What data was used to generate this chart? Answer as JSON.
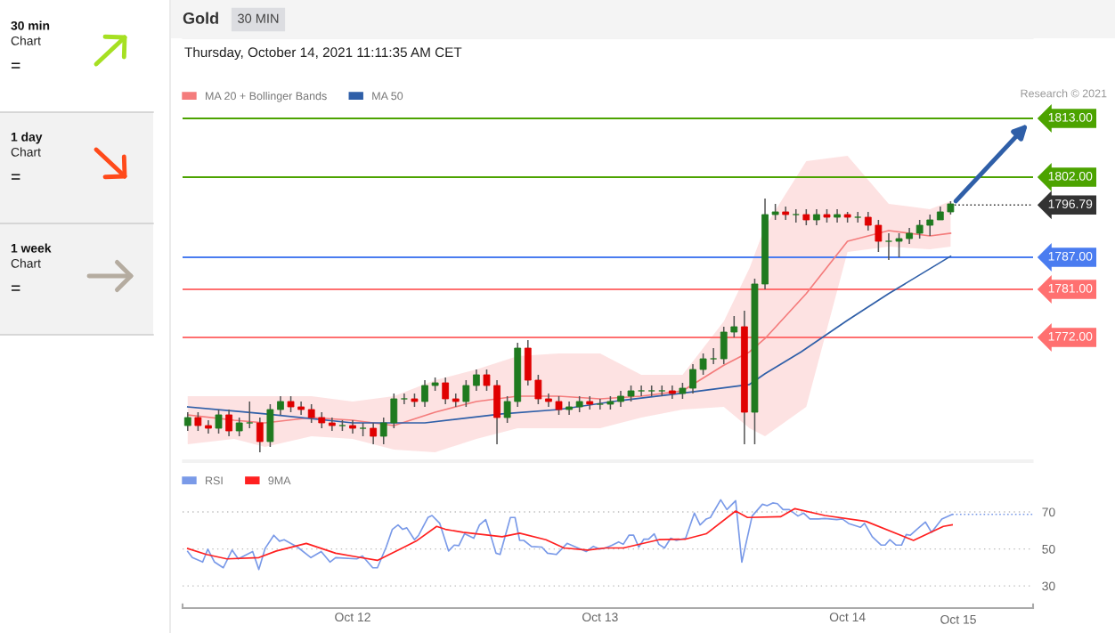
{
  "chart_data": [
    {
      "type": "other",
      "annotations": [
        "30 min",
        "Chart",
        "=",
        "1 day",
        "Chart",
        "=",
        "1 week",
        "Chart",
        "="
      ]
    },
    {
      "type": "candlestick",
      "title": "Gold",
      "subtitle": "Thursday, October 14, 2021 11:11:35 AM CET",
      "annotations": [
        "30 MIN",
        "Research © 2021"
      ],
      "x": [
        "2021-10-11T08:00",
        "2021-10-11T09:00",
        "2021-10-11T10:00",
        "2021-10-11T11:00",
        "2021-10-11T12:00",
        "2021-10-11T13:00",
        "2021-10-11T14:00",
        "2021-10-11T15:00",
        "2021-10-11T16:00",
        "2021-10-11T17:00",
        "2021-10-11T18:00",
        "2021-10-11T19:00",
        "2021-10-11T20:00",
        "2021-10-11T21:00",
        "2021-10-11T22:00",
        "2021-10-11T23:00",
        "2021-10-12T00:00",
        "2021-10-12T01:00",
        "2021-10-12T02:00",
        "2021-10-12T03:00",
        "2021-10-12T04:00",
        "2021-10-12T05:00",
        "2021-10-12T06:00",
        "2021-10-12T07:00",
        "2021-10-12T08:00",
        "2021-10-12T09:00",
        "2021-10-12T10:00",
        "2021-10-12T11:00",
        "2021-10-12T12:00",
        "2021-10-12T13:00",
        "2021-10-12T14:00",
        "2021-10-12T15:00",
        "2021-10-12T16:00",
        "2021-10-12T17:00",
        "2021-10-12T18:00",
        "2021-10-12T19:00",
        "2021-10-12T20:00",
        "2021-10-12T21:00",
        "2021-10-12T22:00",
        "2021-10-12T23:00",
        "2021-10-13T00:00",
        "2021-10-13T01:00",
        "2021-10-13T02:00",
        "2021-10-13T03:00",
        "2021-10-13T04:00",
        "2021-10-13T05:00",
        "2021-10-13T06:00",
        "2021-10-13T07:00",
        "2021-10-13T08:00",
        "2021-10-13T09:00",
        "2021-10-13T10:00",
        "2021-10-13T11:00",
        "2021-10-13T12:00",
        "2021-10-13T13:00",
        "2021-10-13T14:00",
        "2021-10-13T15:00",
        "2021-10-13T16:00",
        "2021-10-13T17:00",
        "2021-10-13T18:00",
        "2021-10-13T19:00",
        "2021-10-13T20:00",
        "2021-10-13T21:00",
        "2021-10-13T22:00",
        "2021-10-13T23:00",
        "2021-10-14T00:00",
        "2021-10-14T01:00",
        "2021-10-14T02:00",
        "2021-10-14T03:00",
        "2021-10-14T04:00",
        "2021-10-14T05:00",
        "2021-10-14T06:00",
        "2021-10-14T07:00",
        "2021-10-14T08:00",
        "2021-10-14T09:00",
        "2021-10-14T10:00"
      ],
      "ohlc": [
        [
          1755.5,
          1758,
          1754.5,
          1757
        ],
        [
          1757,
          1758,
          1754.5,
          1755.5
        ],
        [
          1755.5,
          1756.5,
          1754,
          1755
        ],
        [
          1755,
          1758.5,
          1754,
          1757.5
        ],
        [
          1757.5,
          1758.5,
          1753.5,
          1754.5
        ],
        [
          1754.5,
          1757,
          1753.5,
          1756
        ],
        [
          1756,
          1760,
          1755,
          1756
        ],
        [
          1756,
          1757,
          1750.5,
          1752.5
        ],
        [
          1752.5,
          1759.5,
          1751.5,
          1758.5
        ],
        [
          1758.5,
          1761,
          1757.5,
          1760
        ],
        [
          1760,
          1761,
          1758,
          1759
        ],
        [
          1759,
          1760,
          1757.5,
          1758.5
        ],
        [
          1758.5,
          1759.5,
          1756,
          1757
        ],
        [
          1757,
          1758,
          1755,
          1756
        ],
        [
          1756,
          1757,
          1754.5,
          1755.5
        ],
        [
          1755.5,
          1756.5,
          1754.5,
          1755.5
        ],
        [
          1755.5,
          1756.5,
          1754,
          1755
        ],
        [
          1755,
          1756,
          1753.5,
          1755
        ],
        [
          1755,
          1756,
          1752,
          1753.5
        ],
        [
          1753.5,
          1757,
          1752,
          1756
        ],
        [
          1756,
          1761.5,
          1755,
          1760.5
        ],
        [
          1760.5,
          1761.5,
          1759.5,
          1760.5
        ],
        [
          1760.5,
          1761.5,
          1759,
          1760
        ],
        [
          1760,
          1764,
          1759,
          1763
        ],
        [
          1763,
          1764.5,
          1762,
          1763.5
        ],
        [
          1763.5,
          1764.5,
          1759.5,
          1760.5
        ],
        [
          1760.5,
          1761.5,
          1759,
          1760
        ],
        [
          1760,
          1764,
          1759,
          1763
        ],
        [
          1763,
          1766,
          1762,
          1765
        ],
        [
          1765,
          1766,
          1762,
          1763
        ],
        [
          1763,
          1764,
          1752,
          1757
        ],
        [
          1757,
          1761,
          1756,
          1760
        ],
        [
          1760,
          1771,
          1759,
          1770
        ],
        [
          1770,
          1771.5,
          1763,
          1764
        ],
        [
          1764,
          1765,
          1759.5,
          1760.5
        ],
        [
          1760.5,
          1761.5,
          1759,
          1760
        ],
        [
          1760,
          1761,
          1757.5,
          1758.5
        ],
        [
          1758.5,
          1760,
          1757.5,
          1759
        ],
        [
          1759,
          1761,
          1758,
          1760
        ],
        [
          1760,
          1761,
          1758.5,
          1759.5
        ],
        [
          1759.5,
          1760.5,
          1758.5,
          1759.5
        ],
        [
          1759.5,
          1761,
          1758.5,
          1760
        ],
        [
          1760,
          1762,
          1759,
          1761
        ],
        [
          1761,
          1763,
          1760,
          1762
        ],
        [
          1762,
          1763,
          1761,
          1762
        ],
        [
          1762,
          1763,
          1761,
          1762
        ],
        [
          1762,
          1763,
          1761,
          1762
        ],
        [
          1762,
          1763,
          1760.5,
          1761.5
        ],
        [
          1761.5,
          1763.5,
          1760.5,
          1762.5
        ],
        [
          1762.5,
          1767,
          1761.5,
          1766
        ],
        [
          1766,
          1769,
          1765,
          1768
        ],
        [
          1768,
          1770,
          1767,
          1768
        ],
        [
          1768,
          1774,
          1767,
          1773
        ],
        [
          1773,
          1776,
          1772,
          1774
        ],
        [
          1774,
          1777,
          1752,
          1758
        ],
        [
          1758,
          1783,
          1752,
          1782
        ],
        [
          1782,
          1798,
          1781,
          1795
        ],
        [
          1795,
          1797,
          1794,
          1795.5
        ],
        [
          1795.5,
          1796.5,
          1794,
          1795
        ],
        [
          1795,
          1796,
          1793.5,
          1795
        ],
        [
          1795,
          1796,
          1793,
          1794
        ],
        [
          1794,
          1796,
          1793,
          1795
        ],
        [
          1795,
          1796,
          1793.5,
          1794.5
        ],
        [
          1794.5,
          1796,
          1793.5,
          1795
        ],
        [
          1795,
          1795.5,
          1793.5,
          1794.5
        ],
        [
          1794.5,
          1795.5,
          1793.5,
          1794.5
        ],
        [
          1794.5,
          1795.5,
          1792,
          1793
        ],
        [
          1793,
          1794,
          1788,
          1790
        ],
        [
          1790,
          1791.5,
          1786.5,
          1790
        ],
        [
          1790,
          1791.5,
          1787,
          1790.5
        ],
        [
          1790.5,
          1792.5,
          1789.5,
          1791.5
        ],
        [
          1791.5,
          1794,
          1790.5,
          1793
        ],
        [
          1793,
          1795,
          1791,
          1794
        ],
        [
          1794,
          1796.5,
          1794,
          1795.5
        ],
        [
          1795.5,
          1797.5,
          1795,
          1797
        ]
      ],
      "series": [
        {
          "name": "MA 20 + Bollinger Bands",
          "type": "line",
          "color": "#f47c7c",
          "x": [
            "2021-10-11T08:00",
            "2021-10-11T12:30",
            "2021-10-11T15:30",
            "2021-10-11T20:00",
            "2021-10-12T00:00",
            "2021-10-12T04:00",
            "2021-10-12T08:00",
            "2021-10-12T12:00",
            "2021-10-12T16:00",
            "2021-10-12T20:00",
            "2021-10-13T00:00",
            "2021-10-13T04:00",
            "2021-10-13T08:00",
            "2021-10-13T12:00",
            "2021-10-13T14:30",
            "2021-10-13T16:00",
            "2021-10-13T20:00",
            "2021-10-14T00:00",
            "2021-10-14T04:00",
            "2021-10-14T08:00",
            "2021-10-14T10:00"
          ],
          "values": [
            1757.5,
            1756.5,
            1756,
            1757,
            1756.5,
            1755.5,
            1758,
            1760,
            1761,
            1761,
            1760.5,
            1761,
            1762,
            1766.8,
            1769.3,
            1771.8,
            1780.2,
            1790,
            1792,
            1791,
            1791.5
          ],
          "upper": [
            1761,
            1761,
            1761,
            1761,
            1760,
            1761,
            1764,
            1766,
            1768.5,
            1769,
            1769,
            1765,
            1765,
            1775,
            1785,
            1792.7,
            1805,
            1806,
            1797,
            1796,
            1797.5
          ],
          "lower": [
            1752,
            1753,
            1751.5,
            1753.5,
            1753,
            1751,
            1750.5,
            1753,
            1755,
            1755,
            1755,
            1757,
            1758.5,
            1759,
            1755,
            1753.5,
            1759,
            1788,
            1789,
            1788.5,
            1789
          ]
        },
        {
          "name": "MA 50",
          "type": "line",
          "color": "#2f5fa8",
          "x": [
            "2021-10-11T08:00",
            "2021-10-11T15:30",
            "2021-10-12T00:00",
            "2021-10-12T07:00",
            "2021-10-12T14:30",
            "2021-10-12T20:00",
            "2021-10-13T02:00",
            "2021-10-13T09:00",
            "2021-10-13T14:30",
            "2021-10-13T16:00",
            "2021-10-13T19:30",
            "2021-10-14T00:00",
            "2021-10-14T04:00",
            "2021-10-14T10:00"
          ],
          "values": [
            1759,
            1757.7,
            1756,
            1756,
            1757.7,
            1758.5,
            1760.2,
            1761.8,
            1763.2,
            1765.2,
            1769.3,
            1775.2,
            1780.2,
            1787.2
          ]
        }
      ],
      "xlim": [
        "2021-10-11T07:30",
        "2021-10-14T18:00"
      ],
      "ylim": [
        1749,
        1828
      ],
      "grid": false,
      "legend": "top left",
      "ref_lines": [
        {
          "axis": "y",
          "value": 1813,
          "label": "1813.00",
          "color": "#4ca300"
        },
        {
          "axis": "y",
          "value": 1802,
          "label": "1802.00",
          "color": "#4ca300"
        },
        {
          "axis": "y",
          "value": 1796.79,
          "label": "1796.79",
          "color": "#333333",
          "line_style": "dotted"
        },
        {
          "axis": "y",
          "value": 1787,
          "label": "1787.00",
          "color": "#4a7cf0"
        },
        {
          "axis": "y",
          "value": 1781,
          "label": "1781.00",
          "color": "#ff7070"
        },
        {
          "axis": "y",
          "value": 1772,
          "label": "1772.00",
          "color": "#ff7070"
        }
      ]
    },
    {
      "type": "line",
      "legend": "top left",
      "grid": "y",
      "xlim": [
        "2021-10-11T07:30",
        "2021-10-14T18:00"
      ],
      "ylim": [
        18,
        97
      ],
      "yticks": [
        30,
        50,
        70
      ],
      "xticks": [
        {
          "value": "2021-10-12",
          "label": "Oct 12"
        },
        {
          "value": "2021-10-13",
          "label": "Oct 13"
        },
        {
          "value": "2021-10-14",
          "label": "Oct 14"
        }
      ],
      "annotations": [
        "Oct 15"
      ],
      "series": [
        {
          "name": "RSI",
          "color": "#7a9ae8",
          "x": [
            "2021-10-11T08:00",
            "2021-10-11T08:27",
            "2021-10-11T09:27",
            "2021-10-11T09:57",
            "2021-10-11T10:36",
            "2021-10-11T11:27",
            "2021-10-11T12:18",
            "2021-10-11T12:54",
            "2021-10-11T14:18",
            "2021-10-11T14:54",
            "2021-10-11T15:30",
            "2021-10-11T16:21",
            "2021-10-11T16:54",
            "2021-10-11T17:21",
            "2021-10-11T18:39",
            "2021-10-11T19:57",
            "2021-10-11T20:57",
            "2021-10-11T21:48",
            "2021-10-11T22:21",
            "2021-10-12T00:24",
            "2021-10-12T00:57",
            "2021-10-12T01:57",
            "2021-10-12T02:24",
            "2021-10-12T03:15",
            "2021-10-12T03:51",
            "2021-10-12T04:24",
            "2021-10-12T04:51",
            "2021-10-12T05:15",
            "2021-10-12T06:00",
            "2021-10-12T06:24",
            "2021-10-12T07:18",
            "2021-10-12T07:42",
            "2021-10-12T08:27",
            "2021-10-12T09:18",
            "2021-10-12T09:51",
            "2021-10-12T10:18",
            "2021-10-12T10:51",
            "2021-10-12T11:45",
            "2021-10-12T12:18",
            "2021-10-12T12:54",
            "2021-10-12T13:18",
            "2021-10-12T13:54",
            "2021-10-12T14:18",
            "2021-10-12T15:18",
            "2021-10-12T15:45",
            "2021-10-12T16:12",
            "2021-10-12T16:36",
            "2021-10-12T17:21",
            "2021-10-12T18:21",
            "2021-10-12T18:54",
            "2021-10-12T19:45",
            "2021-10-12T20:48",
            "2021-10-12T21:39",
            "2021-10-12T22:39",
            "2021-10-12T23:21",
            "2021-10-12T23:57",
            "2021-10-13T00:30",
            "2021-10-13T01:06",
            "2021-10-13T01:48",
            "2021-10-13T02:15",
            "2021-10-13T02:48",
            "2021-10-13T03:15",
            "2021-10-13T03:45",
            "2021-10-13T04:15",
            "2021-10-13T04:42",
            "2021-10-13T05:15",
            "2021-10-13T05:42",
            "2021-10-13T06:15",
            "2021-10-13T06:51",
            "2021-10-13T07:24",
            "2021-10-13T08:18",
            "2021-10-13T09:09",
            "2021-10-13T09:42",
            "2021-10-13T10:18",
            "2021-10-13T10:42",
            "2021-10-13T11:42",
            "2021-10-13T12:18",
            "2021-10-13T13:09",
            "2021-10-13T13:45",
            "2021-10-13T14:45",
            "2021-10-13T15:45",
            "2021-10-13T16:12",
            "2021-10-13T16:45",
            "2021-10-13T17:12",
            "2021-10-13T17:45",
            "2021-10-13T18:21",
            "2021-10-13T19:12",
            "2021-10-13T19:45",
            "2021-10-13T20:21",
            "2021-10-13T21:12",
            "2021-10-13T21:48",
            "2021-10-13T22:57",
            "2021-10-13T23:30",
            "2021-10-14T00:06",
            "2021-10-14T01:15",
            "2021-10-14T01:39",
            "2021-10-14T02:24",
            "2021-10-14T03:15",
            "2021-10-14T03:39",
            "2021-10-14T04:06",
            "2021-10-14T04:42",
            "2021-10-14T05:15",
            "2021-10-14T05:42",
            "2021-10-14T06:06",
            "2021-10-14T06:42",
            "2021-10-14T07:33",
            "2021-10-14T08:09",
            "2021-10-14T09:09",
            "2021-10-14T10:09"
          ],
          "values": [
            48.6,
            45.3,
            42.9,
            49.9,
            42.9,
            39.8,
            49.4,
            44.6,
            48.6,
            38.9,
            50.2,
            57.4,
            54.2,
            55,
            51,
            45.3,
            48.6,
            42.9,
            45.3,
            44.6,
            46.2,
            39.8,
            39.8,
            51,
            60.6,
            63,
            60.6,
            61.4,
            55,
            57.4,
            67,
            68.1,
            63.8,
            48.9,
            52.1,
            51.8,
            58.2,
            55.8,
            63,
            65.9,
            59,
            47.7,
            47,
            67,
            67,
            54.6,
            54.6,
            51.3,
            51,
            47.7,
            47,
            53,
            51,
            48.6,
            51.4,
            49.9,
            50.5,
            51.8,
            53.8,
            52.5,
            57.4,
            57.4,
            51,
            55.3,
            55.3,
            58.2,
            52.5,
            50.5,
            55.8,
            54.6,
            55.8,
            69.4,
            63,
            66.2,
            67,
            76.6,
            71.3,
            76.1,
            42.9,
            67.8,
            74.2,
            73.4,
            74.9,
            74.5,
            71.3,
            71.3,
            67.8,
            69.4,
            66.2,
            66.2,
            66.5,
            65.9,
            66.2,
            63.8,
            61.7,
            63.8,
            56.6,
            52.1,
            52.1,
            55,
            52.1,
            52.1,
            57.8,
            57.4,
            60.4,
            64.6,
            59,
            66.2,
            68.7
          ]
        },
        {
          "name": "9MA",
          "color": "#ff2020",
          "x": [
            "2021-10-11T08:00",
            "2021-10-11T09:48",
            "2021-10-11T11:48",
            "2021-10-11T14:54",
            "2021-10-11T16:36",
            "2021-10-11T19:30",
            "2021-10-11T22:21",
            "2021-10-12T00:24",
            "2021-10-12T02:24",
            "2021-10-12T05:00",
            "2021-10-12T06:09",
            "2021-10-12T08:09",
            "2021-10-12T09:00",
            "2021-10-12T10:42",
            "2021-10-12T14:30",
            "2021-10-12T16:12",
            "2021-10-12T18:45",
            "2021-10-12T20:30",
            "2021-10-12T22:48",
            "2021-10-13T00:30",
            "2021-10-13T02:15",
            "2021-10-13T05:42",
            "2021-10-13T08:18",
            "2021-10-13T10:18",
            "2021-10-13T13:09",
            "2021-10-13T14:18",
            "2021-10-13T17:30",
            "2021-10-13T18:54",
            "2021-10-13T21:48",
            "2021-10-14T01:48",
            "2021-10-14T06:24",
            "2021-10-14T09:18",
            "2021-10-14T10:09"
          ],
          "values": [
            50.2,
            47,
            44.6,
            45.3,
            48.9,
            53,
            47.7,
            45.7,
            43.8,
            51,
            54.2,
            62.2,
            60.6,
            59,
            56.6,
            58.5,
            55,
            50.5,
            49.4,
            50.5,
            50.5,
            55,
            55.3,
            58.2,
            70.5,
            67,
            67.4,
            71.8,
            68.1,
            64.9,
            54.6,
            62.2,
            63
          ]
        }
      ],
      "ref_lines": [
        {
          "axis": "y",
          "value": 68.7,
          "color": "#7a9ae8",
          "line_style": "dotted"
        }
      ]
    }
  ]
}
